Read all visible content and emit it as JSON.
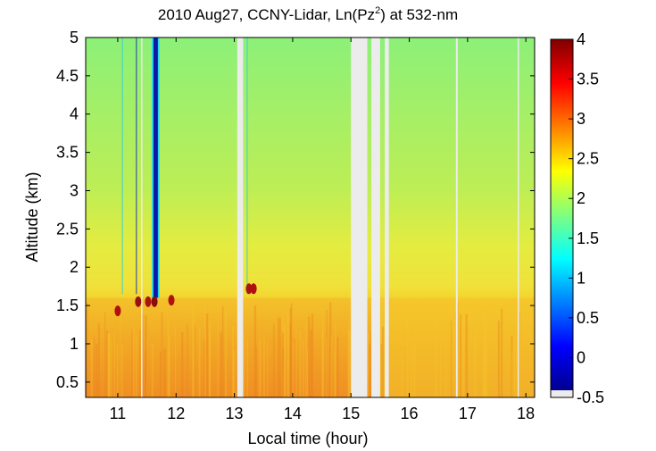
{
  "chart_data": {
    "type": "heatmap",
    "title_main": "2010 Aug27, CCNY-Lidar, Ln(Pz",
    "title_sup": "2",
    "title_tail": ") at 532-nm",
    "xlabel": "Local time (hour)",
    "ylabel": "Altitude (km)",
    "xlim": [
      10.45,
      18.15
    ],
    "ylim": [
      0.3,
      5.0
    ],
    "xticks": [
      "11",
      "12",
      "13",
      "14",
      "15",
      "16",
      "17",
      "18"
    ],
    "yticks": [
      "0.5",
      "1",
      "1.5",
      "2",
      "2.5",
      "3",
      "3.5",
      "4",
      "4.5",
      "5"
    ],
    "colorbar": {
      "range": [
        -0.5,
        4
      ],
      "ticks": [
        "-0.5",
        "0",
        "0.5",
        "1",
        "1.5",
        "2",
        "2.5",
        "3",
        "3.5",
        "4"
      ]
    },
    "boundary_layer_top_km": 1.6,
    "data_gaps_hours": [
      [
        13.05,
        13.15
      ],
      [
        15.0,
        15.28
      ],
      [
        15.35,
        15.5
      ],
      [
        15.58,
        15.65
      ],
      [
        16.8,
        16.83
      ],
      [
        17.86,
        17.88
      ],
      [
        11.4,
        11.42
      ]
    ],
    "cloud_signal": {
      "time_hours": [
        11.6,
        11.7
      ],
      "altitude_km": [
        1.6,
        5.0
      ],
      "value": -0.3
    }
  }
}
